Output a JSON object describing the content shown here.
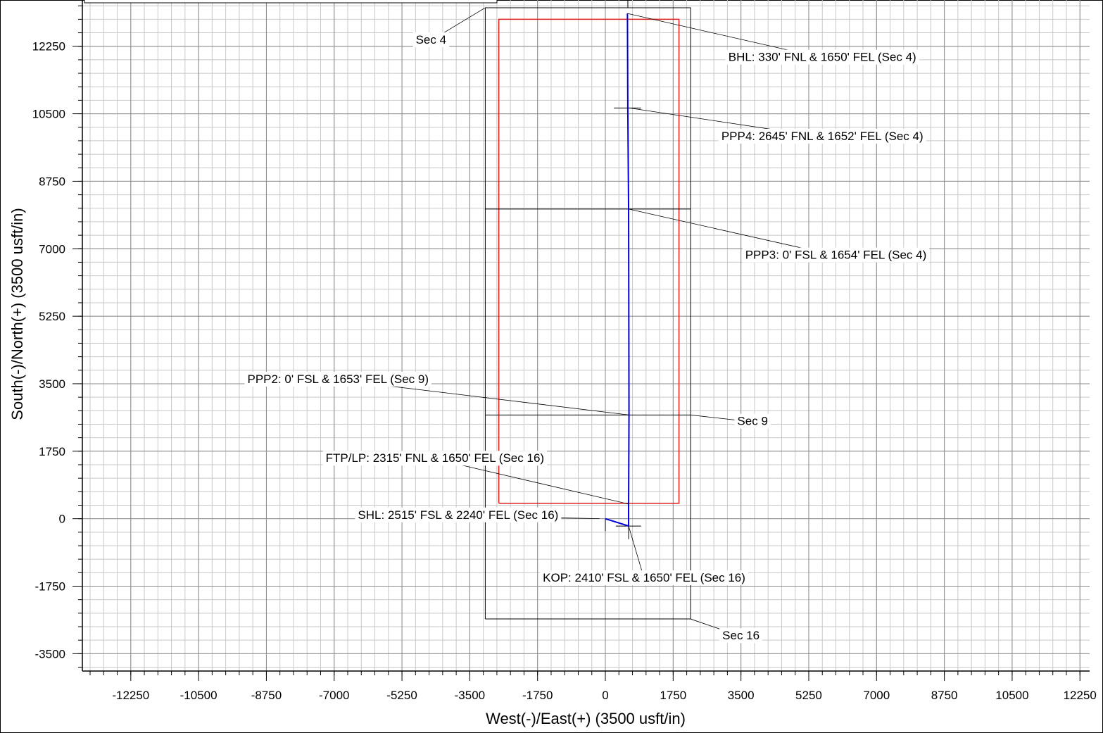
{
  "chart_data": {
    "type": "line",
    "xlabel": "West(-)/East(+) (3500 usft/in)",
    "ylabel": "South(-)/North(+) (3500 usft/in)",
    "xlim": [
      -13500,
      12500
    ],
    "ylim": [
      -3950,
      13450
    ],
    "x_ticks": [
      -12250,
      -10500,
      -8750,
      -7000,
      -5250,
      -3500,
      -1750,
      0,
      1750,
      3500,
      5250,
      7000,
      8750,
      10500,
      12250
    ],
    "y_ticks": [
      -3500,
      -1750,
      0,
      1750,
      3500,
      5250,
      7000,
      8750,
      10500,
      12250
    ],
    "grid": true,
    "colors": {
      "wellpath": "#0000dd",
      "lease_boundary": "#e02020",
      "section_lines": "#000000",
      "grid_major": "#8a8a8a",
      "grid_minor": "#c8c8c8"
    },
    "series": [
      {
        "color": "#0000dd",
        "x": [
          0,
          600,
          600,
          610,
          600,
          580,
          570
        ],
        "y": [
          0,
          -190,
          380,
          2690,
          8030,
          10550,
          13100
        ]
      }
    ],
    "section_lines": [
      {
        "x": [
          -3100,
          2200,
          2200,
          -3100,
          -3100
        ],
        "y": [
          -2600,
          -2600,
          13250,
          13250,
          -2600
        ]
      },
      {
        "x": [
          -3100,
          2200
        ],
        "y": [
          2690,
          2690
        ]
      },
      {
        "x": [
          -3100,
          2200
        ],
        "y": [
          8030,
          8030
        ]
      },
      {
        "x": [
          580,
          580
        ],
        "y": [
          13250,
          13450
        ]
      }
    ],
    "lease_boundary": {
      "x": [
        -2750,
        1900,
        1900,
        -2750,
        -2750
      ],
      "y": [
        400,
        400,
        12950,
        12950,
        400
      ]
    },
    "markers": [
      {
        "x": [
          0,
          0
        ],
        "y": [
          -320,
          0
        ]
      },
      {
        "x": [
          270,
          920
        ],
        "y": [
          -190,
          -190
        ]
      },
      {
        "x": [
          600,
          600
        ],
        "y": [
          -530,
          200
        ]
      },
      {
        "x": [
          220,
          920
        ],
        "y": [
          10650,
          10650
        ]
      }
    ],
    "annotations": [
      {
        "text": "BHL: 330' FNL & 1650' FEL (Sec 4)",
        "point": [
          570,
          13100
        ],
        "label_at": [
          5600,
          11950
        ]
      },
      {
        "text": "PPP4: 2645' FNL & 1652' FEL (Sec 4)",
        "point": [
          620,
          10650
        ],
        "label_at": [
          5600,
          9900
        ]
      },
      {
        "text": "PPP3: 0' FSL & 1654' FEL (Sec 4)",
        "point": [
          600,
          8030
        ],
        "label_at": [
          5950,
          6820
        ]
      },
      {
        "text": "PPP2: 0' FSL & 1653' FEL (Sec 9)",
        "point": [
          610,
          2690
        ],
        "label_at": [
          -6900,
          3600
        ]
      },
      {
        "text": "Sec 9",
        "point": [
          2200,
          2690
        ],
        "label_at": [
          3800,
          2510
        ]
      },
      {
        "text": "FTP/LP: 2315' FNL & 1650' FEL (Sec 16)",
        "point": [
          600,
          380
        ],
        "label_at": [
          -4400,
          1550
        ]
      },
      {
        "text": "SHL: 2515' FSL & 2240' FEL (Sec 16)",
        "point": [
          -150,
          0
        ],
        "label_at": [
          -3800,
          80
        ]
      },
      {
        "text": "KOP: 2410' FSL & 1650' FEL (Sec 16)",
        "point": [
          600,
          -190
        ],
        "label_at": [
          1000,
          -1550
        ]
      },
      {
        "text": "Sec 16",
        "point": [
          2200,
          -2600
        ],
        "label_at": [
          3500,
          -3050
        ]
      },
      {
        "text": "Sec 4",
        "point": [
          -3100,
          13250
        ],
        "label_at": [
          -4500,
          12400
        ]
      }
    ]
  }
}
